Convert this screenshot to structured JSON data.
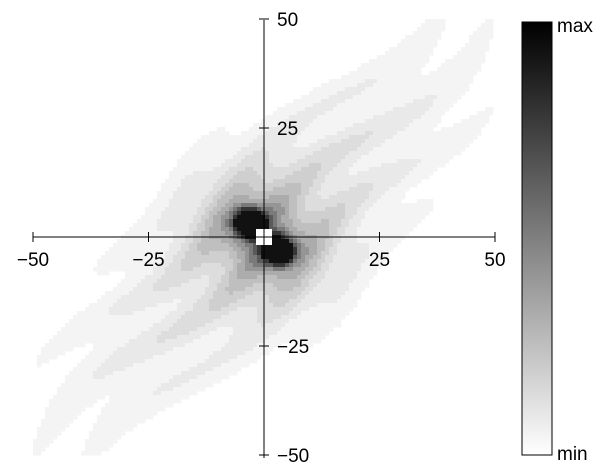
{
  "chart_data": {
    "type": "heatmap",
    "x_range": [
      -50,
      50
    ],
    "y_range": [
      -50,
      50
    ],
    "x_ticks": [
      -50,
      -25,
      25,
      50
    ],
    "x_tick_labels": [
      "−50",
      "−25",
      "25",
      "50"
    ],
    "y_ticks": [
      50,
      25,
      -25,
      -50
    ],
    "y_tick_labels": [
      "50",
      "25",
      "−25",
      "−50"
    ],
    "colorbar": {
      "max_label": "max",
      "min_label": "min",
      "colormap": "grayscale"
    },
    "color_levels": [
      "#ffffff",
      "#f4f4f4",
      "#e9e9e9",
      "#dddddd",
      "#cfcfcf",
      "#bfbfbf",
      "#acacac",
      "#959595",
      "#7a7a7a",
      "#5a5a5a",
      "#363636",
      "#111111"
    ],
    "field": {
      "description_values": "peaks near origin along the diagonal x=-y, elongated tail along x=y",
      "peaks": [
        {
          "x": -3.5,
          "y": 3.5,
          "level": "max"
        },
        {
          "x": 3.5,
          "y": -3.5,
          "level": "max"
        }
      ],
      "center_hole": {
        "x": 0,
        "y": 0,
        "level": "min"
      }
    },
    "grid": false,
    "legend": "colorbar-right"
  }
}
